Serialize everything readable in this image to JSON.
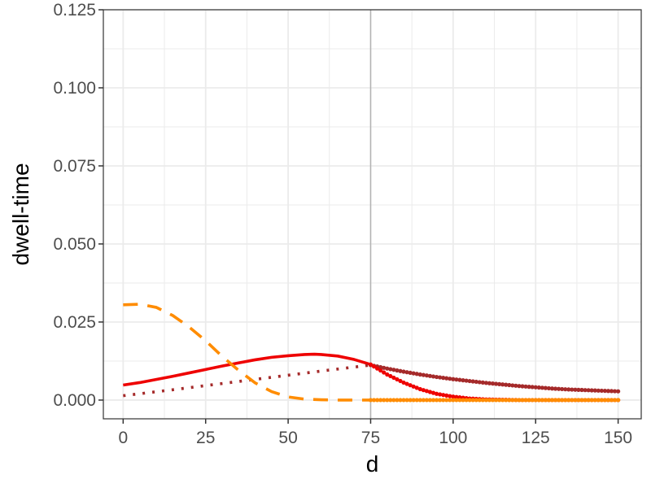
{
  "chart_data": {
    "type": "line",
    "xlabel": "d",
    "ylabel": "dwell-time",
    "xlim": [
      -6,
      157
    ],
    "ylim": [
      -0.006,
      0.125
    ],
    "x_ticks": [
      0,
      25,
      50,
      75,
      100,
      125,
      150
    ],
    "x_tick_labels": [
      "0",
      "25",
      "50",
      "75",
      "100",
      "125",
      "150"
    ],
    "y_ticks": [
      0,
      0.025,
      0.05,
      0.075,
      0.1,
      0.125
    ],
    "y_tick_labels": [
      "0.000",
      "0.025",
      "0.050",
      "0.075",
      "0.100",
      "0.125"
    ],
    "grid": true,
    "vertical_reference_line": 75,
    "colors": {
      "red": "#ee0000",
      "dark_red": "#a52a2a",
      "orange": "#ff8c00",
      "grid": "#ebebeb",
      "reference_line": "#b3b3b3",
      "panel_border": "#333333"
    },
    "series": [
      {
        "color": "#ee0000",
        "style": "solid",
        "x": [
          0,
          5,
          10,
          15,
          20,
          25,
          30,
          35,
          40,
          45,
          50,
          55,
          58,
          60,
          65,
          70,
          75
        ],
        "y": [
          0.0048,
          0.0056,
          0.0066,
          0.0076,
          0.0087,
          0.0098,
          0.0109,
          0.0119,
          0.0129,
          0.0137,
          0.0142,
          0.0146,
          0.0147,
          0.0146,
          0.0141,
          0.013,
          0.0114
        ]
      },
      {
        "color": "#a52a2a",
        "style": "dotted",
        "x": [
          0,
          15,
          30,
          45,
          60,
          75
        ],
        "y": [
          0.0014,
          0.0033,
          0.0053,
          0.0073,
          0.0093,
          0.0112
        ]
      },
      {
        "color": "#ff8c00",
        "style": "dashed",
        "x": [
          0,
          5,
          10,
          15,
          20,
          25,
          30,
          35,
          40,
          45,
          50,
          55,
          60,
          65,
          70,
          75
        ],
        "y": [
          0.0305,
          0.0307,
          0.0297,
          0.0271,
          0.0234,
          0.019,
          0.014,
          0.0095,
          0.0055,
          0.0027,
          0.001,
          0.0003,
          0.0001,
          0.0,
          0.0,
          0.0
        ]
      },
      {
        "color": "#a52a2a",
        "style": "points",
        "x": [
          75,
          80,
          85,
          90,
          95,
          100,
          105,
          110,
          115,
          120,
          125,
          130,
          135,
          140,
          145,
          150
        ],
        "y": [
          0.0112,
          0.0101,
          0.0091,
          0.0082,
          0.0074,
          0.0067,
          0.0061,
          0.0055,
          0.005,
          0.0045,
          0.0041,
          0.0037,
          0.0034,
          0.0032,
          0.003,
          0.0028
        ]
      },
      {
        "color": "#ee0000",
        "style": "points",
        "x": [
          75,
          80,
          85,
          90,
          95,
          100,
          105,
          110,
          115,
          120,
          125,
          130,
          135,
          140,
          145,
          150
        ],
        "y": [
          0.0114,
          0.0082,
          0.0056,
          0.0035,
          0.002,
          0.0011,
          0.0005,
          0.0002,
          0.0001,
          0.0,
          0.0,
          0.0,
          0.0,
          0.0,
          0.0,
          0.0
        ]
      },
      {
        "color": "#ff8c00",
        "style": "points",
        "x": [
          75,
          80,
          85,
          90,
          95,
          100,
          105,
          110,
          115,
          120,
          125,
          130,
          135,
          140,
          145,
          150
        ],
        "y": [
          0.0,
          0.0,
          0.0,
          0.0,
          0.0,
          0.0,
          0.0,
          0.0,
          0.0,
          0.0,
          0.0,
          0.0,
          0.0,
          0.0,
          0.0,
          0.0
        ]
      }
    ]
  }
}
